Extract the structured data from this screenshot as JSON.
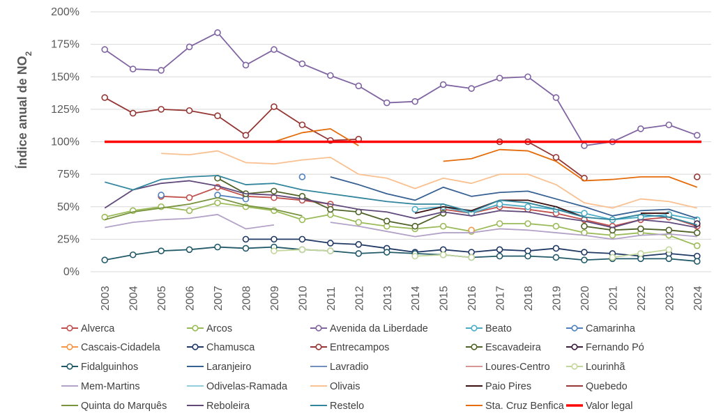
{
  "chart_data": {
    "type": "line",
    "title": "",
    "ylabel": "Índice anual de NO",
    "ylabel_subscript": "2",
    "xlabel": "",
    "ylim": [
      0,
      200
    ],
    "ytick_values": [
      0,
      25,
      50,
      75,
      100,
      125,
      150,
      175,
      200
    ],
    "ytick_labels": [
      "0%",
      "25%",
      "50%",
      "75%",
      "100%",
      "125%",
      "150%",
      "175%",
      "200%"
    ],
    "grid": true,
    "legend_position": "bottom",
    "categories": [
      "2003",
      "2004",
      "2005",
      "2006",
      "2007",
      "2008",
      "2009",
      "2010",
      "2011",
      "2012",
      "2013",
      "2014",
      "2015",
      "2016",
      "2017",
      "2018",
      "2019",
      "2020",
      "2021",
      "2022",
      "2023",
      "2024"
    ],
    "series": [
      {
        "name": "Alverca",
        "color": "#c0504d",
        "markers": true,
        "values": [
          null,
          null,
          58,
          57,
          65,
          58,
          57,
          55,
          52,
          null,
          null,
          null,
          48,
          45,
          50,
          48,
          45,
          40,
          35,
          40,
          42,
          35
        ]
      },
      {
        "name": "Arcos",
        "color": "#9bbb59",
        "markers": true,
        "values": [
          42,
          47,
          50,
          47,
          53,
          50,
          47,
          40,
          44,
          38,
          35,
          33,
          35,
          31,
          37,
          37,
          35,
          30,
          28,
          30,
          28,
          20
        ]
      },
      {
        "name": "Avenida da Liberdade",
        "color": "#8064a2",
        "markers": true,
        "values": [
          171,
          156,
          155,
          173,
          184,
          159,
          171,
          160,
          151,
          143,
          130,
          131,
          144,
          141,
          149,
          150,
          134,
          97,
          100,
          110,
          113,
          105
        ]
      },
      {
        "name": "Beato",
        "color": "#4bacc6",
        "markers": true,
        "values": [
          null,
          null,
          null,
          null,
          null,
          null,
          null,
          null,
          null,
          null,
          null,
          48,
          50,
          45,
          52,
          50,
          48,
          45,
          40,
          42,
          44,
          40
        ]
      },
      {
        "name": "Camarinha",
        "color": "#4f81bd",
        "markers": true,
        "values": [
          null,
          null,
          59,
          null,
          59,
          56,
          null,
          73,
          null,
          null,
          null,
          null,
          null,
          null,
          null,
          null,
          null,
          null,
          null,
          null,
          null,
          null
        ]
      },
      {
        "name": "Cascais-Cidadela",
        "color": "#f79646",
        "markers": true,
        "values": [
          null,
          null,
          null,
          null,
          null,
          null,
          null,
          null,
          null,
          null,
          null,
          null,
          null,
          32,
          null,
          null,
          null,
          null,
          null,
          null,
          null,
          null
        ]
      },
      {
        "name": "Chamusca",
        "color": "#1f3864",
        "markers": true,
        "values": [
          null,
          null,
          null,
          null,
          null,
          25,
          25,
          25,
          22,
          21,
          18,
          15,
          17,
          15,
          17,
          16,
          18,
          15,
          14,
          12,
          14,
          12
        ]
      },
      {
        "name": "Entrecampos",
        "color": "#943634",
        "markers": true,
        "values": [
          134,
          122,
          125,
          124,
          120,
          105,
          127,
          113,
          101,
          102,
          null,
          null,
          null,
          null,
          100,
          100,
          88,
          72,
          null,
          null,
          null,
          73
        ]
      },
      {
        "name": "Escavadeira",
        "color": "#4f6228",
        "markers": true,
        "values": [
          null,
          null,
          null,
          null,
          72,
          60,
          62,
          58,
          48,
          46,
          39,
          35,
          45,
          null,
          null,
          null,
          null,
          35,
          32,
          33,
          32,
          30
        ]
      },
      {
        "name": "Fernando Pó",
        "color": "#3d1c3d",
        "markers": true,
        "values": [
          null,
          null,
          null,
          null,
          null,
          null,
          null,
          null,
          null,
          null,
          null,
          null,
          null,
          null,
          null,
          null,
          null,
          null,
          null,
          null,
          null,
          37
        ]
      },
      {
        "name": "Fidalguinhos",
        "color": "#215968",
        "markers": true,
        "values": [
          9,
          13,
          16,
          17,
          19,
          18,
          19,
          17,
          16,
          14,
          15,
          14,
          13,
          11,
          12,
          12,
          11,
          9,
          10,
          10,
          10,
          8
        ]
      },
      {
        "name": "Laranjeiro",
        "color": "#366092",
        "markers": false,
        "values": [
          null,
          null,
          null,
          null,
          null,
          null,
          null,
          null,
          73,
          67,
          60,
          55,
          65,
          58,
          61,
          62,
          56,
          50,
          43,
          47,
          48,
          41
        ]
      },
      {
        "name": "Lavradio",
        "color": "#6f8fbf",
        "markers": false,
        "values": [
          null,
          null,
          null,
          null,
          null,
          null,
          null,
          null,
          null,
          null,
          null,
          null,
          null,
          null,
          null,
          null,
          null,
          null,
          null,
          null,
          null,
          null
        ]
      },
      {
        "name": "Loures-Centro",
        "color": "#d99694",
        "markers": false,
        "values": [
          null,
          null,
          null,
          null,
          null,
          null,
          null,
          null,
          null,
          null,
          null,
          null,
          null,
          null,
          null,
          null,
          null,
          null,
          null,
          null,
          null,
          null
        ]
      },
      {
        "name": "Lourinhã",
        "color": "#c3d69b",
        "markers": true,
        "values": [
          null,
          null,
          null,
          null,
          null,
          null,
          16,
          17,
          16,
          null,
          null,
          12,
          13,
          11,
          null,
          null,
          null,
          null,
          11,
          14,
          17,
          null
        ]
      },
      {
        "name": "Mem-Martins",
        "color": "#b3a2c7",
        "markers": false,
        "values": [
          34,
          38,
          40,
          41,
          44,
          33,
          36,
          null,
          38,
          35,
          31,
          27,
          30,
          30,
          33,
          32,
          30,
          28,
          25,
          28,
          29,
          27
        ]
      },
      {
        "name": "Odivelas-Ramada",
        "color": "#93cddd",
        "markers": false,
        "values": [
          null,
          null,
          null,
          null,
          null,
          null,
          null,
          null,
          null,
          null,
          null,
          null,
          null,
          null,
          null,
          null,
          53,
          null,
          null,
          null,
          null,
          null
        ]
      },
      {
        "name": "Olivais",
        "color": "#fac090",
        "markers": false,
        "values": [
          null,
          null,
          91,
          90,
          93,
          84,
          83,
          86,
          88,
          75,
          72,
          64,
          72,
          68,
          75,
          75,
          67,
          53,
          49,
          56,
          54,
          49
        ]
      },
      {
        "name": "Paio Pires",
        "color": "#3b0f0f",
        "markers": false,
        "values": [
          null,
          null,
          null,
          null,
          null,
          null,
          null,
          null,
          null,
          null,
          null,
          45,
          50,
          47,
          55,
          55,
          50,
          42,
          null,
          45,
          45,
          null
        ]
      },
      {
        "name": "Quebedo",
        "color": "#953735",
        "markers": false,
        "values": [
          null,
          null,
          null,
          null,
          null,
          null,
          null,
          null,
          null,
          null,
          null,
          null,
          null,
          null,
          null,
          null,
          null,
          null,
          null,
          null,
          null,
          null
        ]
      },
      {
        "name": "Quinta do Marquês",
        "color": "#77933c",
        "markers": false,
        "values": [
          40,
          46,
          49,
          52,
          57,
          51,
          48,
          43,
          null,
          null,
          null,
          null,
          null,
          null,
          null,
          null,
          null,
          null,
          null,
          null,
          null,
          null
        ]
      },
      {
        "name": "Reboleira",
        "color": "#60497a",
        "markers": false,
        "values": [
          49,
          63,
          68,
          70,
          66,
          60,
          59,
          56,
          52,
          48,
          46,
          41,
          46,
          43,
          47,
          46,
          42,
          39,
          34,
          40,
          38,
          34
        ]
      },
      {
        "name": "Restelo",
        "color": "#31859c",
        "markers": false,
        "values": [
          69,
          63,
          71,
          73,
          74,
          67,
          68,
          63,
          60,
          57,
          54,
          52,
          52,
          46,
          55,
          53,
          48,
          42,
          40,
          44,
          42,
          36
        ]
      },
      {
        "name": "Sta. Cruz Benfica",
        "color": "#e46c0a",
        "markers": false,
        "values": [
          null,
          null,
          null,
          null,
          null,
          null,
          100,
          107,
          110,
          97,
          null,
          null,
          85,
          87,
          94,
          93,
          85,
          70,
          71,
          73,
          73,
          65
        ]
      },
      {
        "name": "Valor legal",
        "color": "#ff0000",
        "markers": false,
        "values": [
          100,
          100,
          100,
          100,
          100,
          100,
          100,
          100,
          100,
          100,
          100,
          100,
          100,
          100,
          100,
          100,
          100,
          100,
          100,
          100,
          100,
          100
        ]
      }
    ]
  }
}
